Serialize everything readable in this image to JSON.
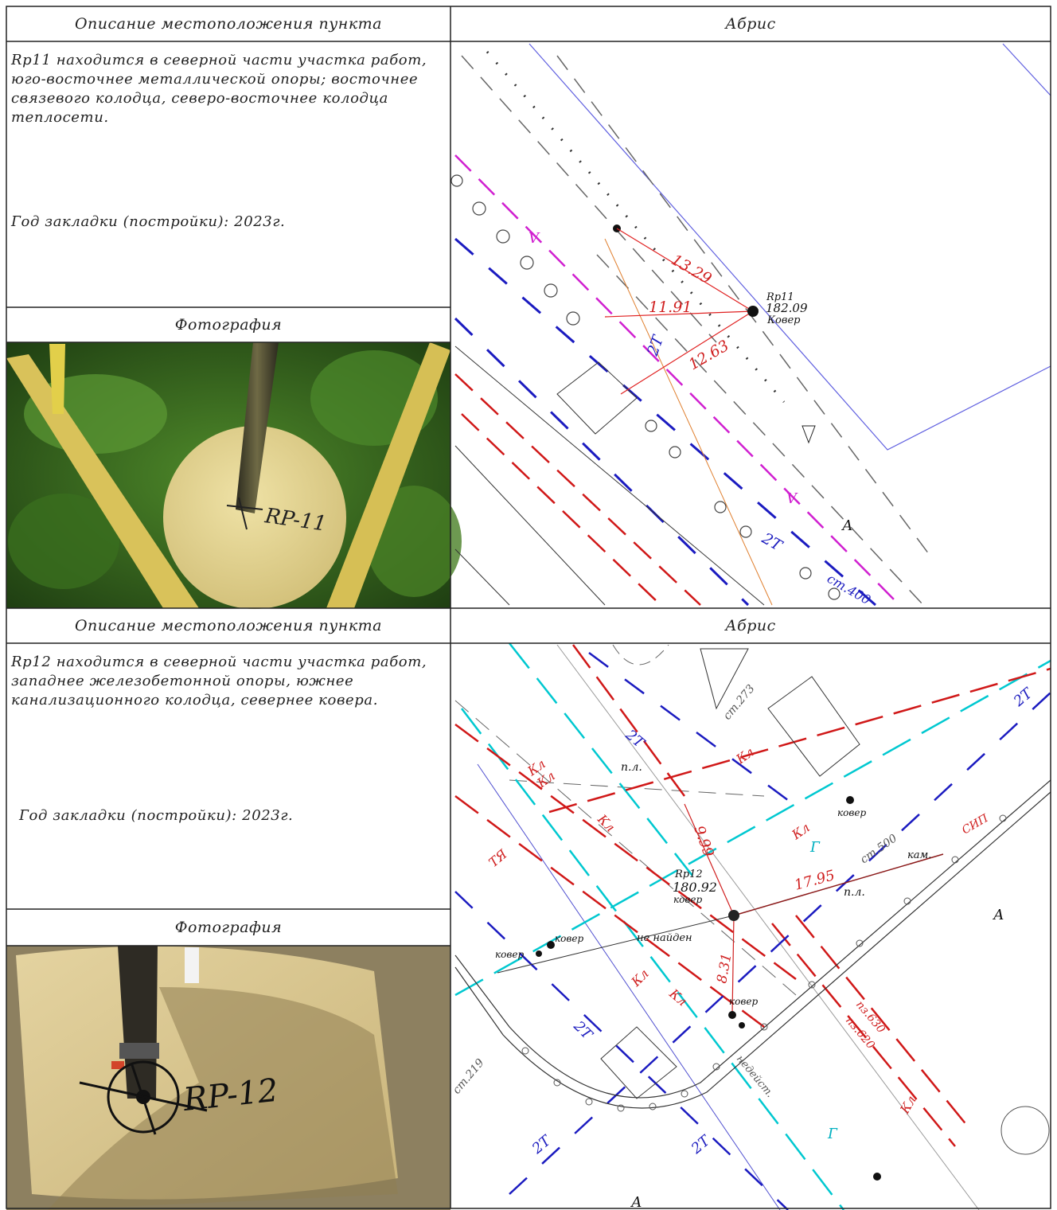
{
  "records": [
    {
      "description_header": "Описание местоположения пункта",
      "abris_header": "Абрис",
      "photo_header": "Фотография",
      "description": "Rp11 находится в северной части участка работ, юго-восточнее металлической опоры; восточнее связевого колодца, северо-восточнее колодца теплосети.",
      "year": "Год закладки (постройки): 2023г.",
      "photo_marking": "RP-11",
      "abris": {
        "point_name": "Rp11",
        "elevation": "182.09",
        "cover": "Ковер",
        "distances": [
          "13.29",
          "11.91",
          "12.63"
        ],
        "labels": [
          "2Т",
          "V",
          "V",
          "2Т",
          "А",
          "ст.400"
        ]
      }
    },
    {
      "description_header": "Описание местоположения пункта",
      "abris_header": "Абрис",
      "photo_header": "Фотография",
      "description": "Rp12 находится в северной части участка работ, западнее железобетонной опоры, южнее канализационного колодца, севернее ковера.",
      "year": "Год закладки (постройки): 2023г.",
      "photo_marking": "RP-12",
      "abris": {
        "point_name": "Rp12",
        "elevation": "180.92",
        "cover": "ковер",
        "distances": [
          "9.99",
          "17.95",
          "8.31"
        ],
        "labels": [
          "Кл",
          "Кл",
          "Кл",
          "Кл",
          "Кл",
          "Кл",
          "Кл",
          "Кл",
          "2Т",
          "2Т",
          "2Т",
          "2Т",
          "2Т",
          "Г",
          "Г",
          "ст.273",
          "ст.500",
          "ст.219",
          "п.л.",
          "п.л.",
          "не найден",
          "кам.",
          "СИП",
          "пз.630",
          "пз.620",
          "недейст.",
          "ТЯ",
          "ковер",
          "ковер",
          "ковер",
          "ковер",
          "А",
          "А"
        ]
      }
    }
  ]
}
